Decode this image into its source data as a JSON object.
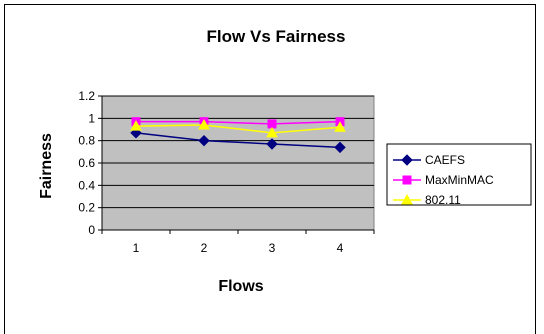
{
  "chart_data": {
    "type": "line",
    "title": "Flow Vs Fairness",
    "xlabel": "Flows",
    "ylabel": "Fairness",
    "categories": [
      "1",
      "2",
      "3",
      "4"
    ],
    "ylim": [
      0,
      1.2
    ],
    "yticks": [
      "0",
      "0.2",
      "0.4",
      "0.6",
      "0.8",
      "1",
      "1.2"
    ],
    "grid": "horizontal",
    "plot_background": "#c0c0c0",
    "legend_position": "right",
    "series": [
      {
        "name": "CAEFS",
        "values": [
          0.87,
          0.8,
          0.77,
          0.74
        ],
        "color": "#000080",
        "marker": "diamond"
      },
      {
        "name": "MaxMinMAC",
        "values": [
          0.97,
          0.97,
          0.95,
          0.97
        ],
        "color": "#ff00ff",
        "marker": "square"
      },
      {
        "name": "802.11",
        "values": [
          0.93,
          0.94,
          0.87,
          0.92
        ],
        "color": "#ffff00",
        "marker": "triangle"
      }
    ]
  }
}
